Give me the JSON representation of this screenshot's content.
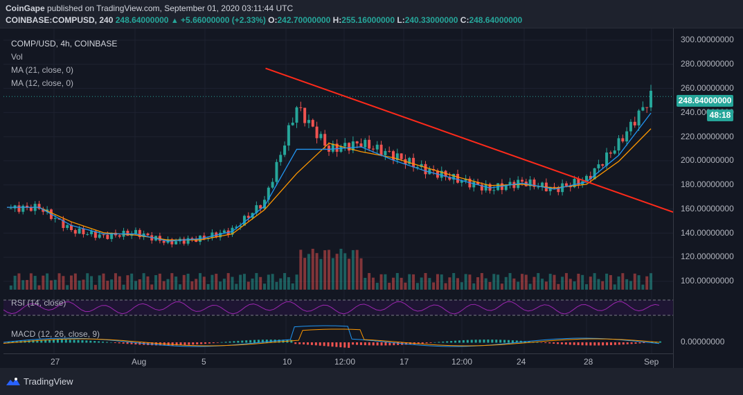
{
  "header": {
    "publisher": "CoinGape",
    "published_text": " published on TradingView.com, September 01, 2020 03:11:44 UTC",
    "symbol": "COINBASE:COMPUSD, 240",
    "last": "248.64000000",
    "change": "+5.66000000 (+2.33%)",
    "o_label": "O:",
    "o_value": "242.70000000",
    "h_label": "H:",
    "h_value": "255.16000000",
    "l_label": "L:",
    "l_value": "240.33000000",
    "c_label": "C:",
    "c_value": "248.64000000"
  },
  "legend": {
    "title": "COMP/USD, 4h, COINBASE",
    "vol": "Vol",
    "ma21": "MA (21, close, 0)",
    "ma12": "MA (12, close, 0)"
  },
  "rsi_label": "RSI (14, close)",
  "macd_label": "MACD (12, 26, close, 9)",
  "price_axis": {
    "ticks": [
      "300.00000000",
      "280.00000000",
      "260.00000000",
      "240.00000000",
      "220.00000000",
      "200.00000000",
      "180.00000000",
      "160.00000000",
      "140.00000000",
      "120.00000000",
      "100.00000000"
    ],
    "macd_tick": "0.00000000",
    "last_price_badge": "248.64000000",
    "countdown_badge": "48:18"
  },
  "time_axis": {
    "ticks": [
      "27",
      "Aug",
      "5",
      "10",
      "12:00",
      "17",
      "12:00",
      "24",
      "28",
      "Sep"
    ]
  },
  "footer": {
    "brand": "TradingView"
  },
  "colors": {
    "up": "#26a69a",
    "down": "#ef5350",
    "ma21": "#ff9800",
    "ma12": "#2196f3",
    "trendline": "#ff2a1a",
    "rsi": "#9c27b0",
    "background": "#131722"
  },
  "icons": {
    "change_direction": "triangle-up-icon",
    "brand": "tradingview-logo-icon"
  },
  "chart_data": {
    "type": "candlestick",
    "title": "COMP/USD, 4h, COINBASE",
    "ylim": [
      90,
      305
    ],
    "x": [
      "Jul 23",
      "Jul 25",
      "Jul 27",
      "Jul 29",
      "Aug 1",
      "Aug 3",
      "Aug 5",
      "Aug 7",
      "Aug 10",
      "Aug 11",
      "Aug 12",
      "Aug 14",
      "Aug 17",
      "Aug 19",
      "Aug 20",
      "Aug 22",
      "Aug 24",
      "Aug 26",
      "Aug 28",
      "Aug 30",
      "Sep 1"
    ],
    "close": [
      156,
      157,
      138,
      133,
      136,
      128,
      131,
      138,
      162,
      240,
      205,
      210,
      200,
      188,
      180,
      172,
      178,
      172,
      180,
      210,
      248.64
    ],
    "ma21": [
      157,
      157,
      145,
      136,
      134,
      130,
      130,
      135,
      155,
      185,
      210,
      203,
      198,
      190,
      182,
      175,
      176,
      173,
      176,
      195,
      222
    ],
    "ma12": [
      157,
      157,
      142,
      135,
      135,
      129,
      131,
      137,
      158,
      205,
      205,
      207,
      196,
      187,
      180,
      173,
      177,
      172,
      178,
      200,
      235
    ],
    "trendline": {
      "start": [
        "Aug 11",
        272
      ],
      "end": [
        "Sep 1",
        153
      ]
    },
    "last_price": 248.64
  }
}
